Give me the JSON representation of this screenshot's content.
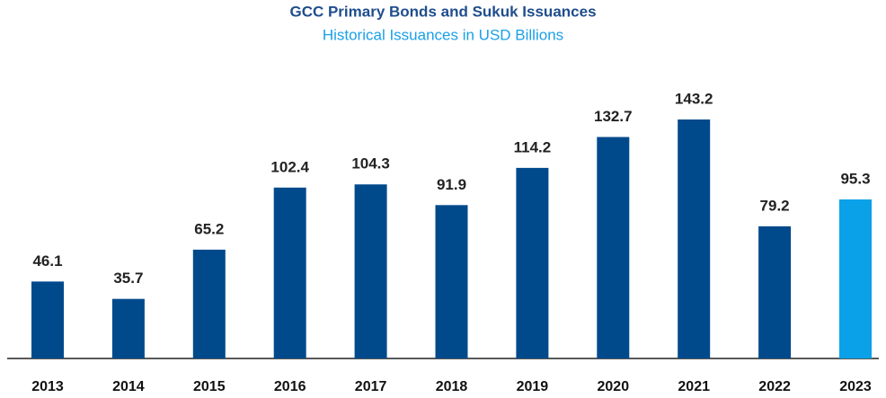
{
  "chart_data": {
    "type": "bar",
    "title": "GCC Primary Bonds and Sukuk Issuances",
    "subtitle": "Historical Issuances in USD Billions",
    "categories": [
      "2013",
      "2014",
      "2015",
      "2016",
      "2017",
      "2018",
      "2019",
      "2020",
      "2021",
      "2022",
      "2023"
    ],
    "values": [
      46.1,
      35.7,
      65.2,
      102.4,
      104.3,
      91.9,
      114.2,
      132.7,
      143.2,
      79.2,
      95.3
    ],
    "colors": [
      "#004a8c",
      "#004a8c",
      "#004a8c",
      "#004a8c",
      "#004a8c",
      "#004a8c",
      "#004a8c",
      "#004a8c",
      "#004a8c",
      "#004a8c",
      "#0aa1e8"
    ],
    "grid": false
  }
}
